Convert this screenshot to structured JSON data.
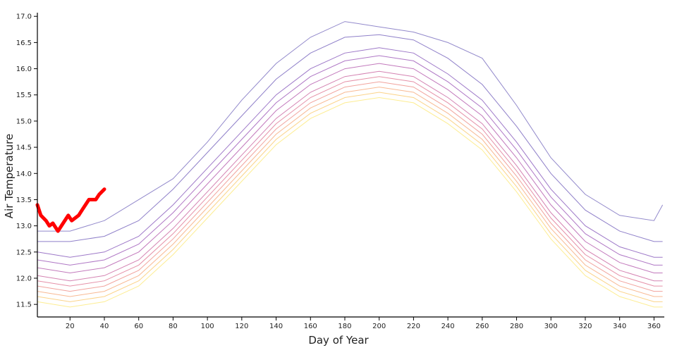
{
  "chart_data": {
    "type": "line",
    "title": "",
    "xlabel": "Day of Year",
    "ylabel": "Air Temperature",
    "xlim": [
      1,
      366
    ],
    "ylim": [
      11.26,
      17.07
    ],
    "xticks": [
      20,
      40,
      60,
      80,
      100,
      120,
      140,
      160,
      180,
      200,
      220,
      240,
      260,
      280,
      300,
      320,
      340,
      360
    ],
    "yticks": [
      "11.5",
      "12.0",
      "12.5",
      "13.0",
      "13.5",
      "14.0",
      "14.5",
      "15.0",
      "15.5",
      "16.0",
      "16.5",
      "17.0"
    ],
    "grid": false,
    "legend": "none",
    "palette": [
      "#fbe14a",
      "#f9b53a",
      "#f48a4b",
      "#e7665c",
      "#d3486e",
      "#b8317f",
      "#9a1f90",
      "#7a1c9e",
      "#5c1ea4",
      "#452ba5",
      "#4a3aa8"
    ],
    "x": [
      1,
      20,
      40,
      60,
      80,
      100,
      120,
      140,
      160,
      180,
      200,
      220,
      240,
      260,
      280,
      300,
      320,
      340,
      360,
      365
    ],
    "series": [
      {
        "values": [
          11.55,
          11.45,
          11.55,
          11.85,
          12.45,
          13.15,
          13.85,
          14.55,
          15.05,
          15.35,
          15.45,
          15.35,
          14.95,
          14.45,
          13.65,
          12.75,
          12.05,
          11.65,
          11.45,
          11.45
        ]
      },
      {
        "values": [
          11.65,
          11.55,
          11.65,
          11.95,
          12.55,
          13.25,
          13.95,
          14.65,
          15.15,
          15.45,
          15.55,
          15.45,
          15.05,
          14.55,
          13.75,
          12.85,
          12.15,
          11.75,
          11.55,
          11.55
        ]
      },
      {
        "values": [
          11.75,
          11.65,
          11.75,
          12.05,
          12.65,
          13.35,
          14.05,
          14.75,
          15.25,
          15.55,
          15.65,
          15.55,
          15.15,
          14.65,
          13.85,
          12.95,
          12.25,
          11.85,
          11.65,
          11.65
        ]
      },
      {
        "values": [
          11.85,
          11.75,
          11.85,
          12.15,
          12.75,
          13.45,
          14.15,
          14.85,
          15.35,
          15.65,
          15.75,
          15.65,
          15.25,
          14.75,
          13.95,
          13.05,
          12.35,
          11.95,
          11.75,
          11.75
        ]
      },
      {
        "values": [
          11.95,
          11.85,
          11.95,
          12.25,
          12.85,
          13.55,
          14.25,
          14.95,
          15.45,
          15.75,
          15.85,
          15.75,
          15.35,
          14.85,
          14.05,
          13.15,
          12.45,
          12.05,
          11.85,
          11.85
        ]
      },
      {
        "values": [
          12.05,
          11.95,
          12.05,
          12.35,
          12.95,
          13.65,
          14.35,
          15.05,
          15.55,
          15.85,
          15.95,
          15.85,
          15.45,
          14.95,
          14.15,
          13.25,
          12.55,
          12.15,
          11.95,
          11.95
        ]
      },
      {
        "values": [
          12.2,
          12.1,
          12.2,
          12.5,
          13.1,
          13.8,
          14.5,
          15.2,
          15.7,
          16.0,
          16.1,
          16.0,
          15.6,
          15.1,
          14.3,
          13.4,
          12.7,
          12.3,
          12.1,
          12.1
        ]
      },
      {
        "values": [
          12.35,
          12.25,
          12.35,
          12.65,
          13.25,
          13.95,
          14.65,
          15.35,
          15.85,
          16.15,
          16.25,
          16.15,
          15.75,
          15.25,
          14.45,
          13.55,
          12.85,
          12.45,
          12.25,
          12.25
        ]
      },
      {
        "values": [
          12.5,
          12.4,
          12.5,
          12.8,
          13.4,
          14.1,
          14.8,
          15.5,
          16.0,
          16.3,
          16.4,
          16.3,
          15.9,
          15.4,
          14.6,
          13.7,
          13.0,
          12.6,
          12.4,
          12.4
        ]
      },
      {
        "values": [
          12.7,
          12.7,
          12.8,
          13.1,
          13.7,
          14.4,
          15.1,
          15.8,
          16.3,
          16.6,
          16.65,
          16.55,
          16.2,
          15.7,
          14.9,
          14.0,
          13.3,
          12.9,
          12.7,
          12.7
        ]
      },
      {
        "values": [
          12.9,
          12.9,
          13.1,
          13.5,
          13.9,
          14.6,
          15.4,
          16.1,
          16.6,
          16.9,
          16.8,
          16.7,
          16.5,
          16.2,
          15.3,
          14.3,
          13.6,
          13.2,
          13.1,
          13.4
        ]
      }
    ],
    "current_series": {
      "color": "#ff0000",
      "x": [
        1,
        3,
        6,
        8,
        10,
        13,
        16,
        19,
        21,
        25,
        27,
        31,
        35,
        37,
        40
      ],
      "values": [
        13.4,
        13.2,
        13.1,
        13.0,
        13.05,
        12.9,
        13.05,
        13.2,
        13.1,
        13.2,
        13.3,
        13.5,
        13.5,
        13.6,
        13.7
      ]
    }
  }
}
